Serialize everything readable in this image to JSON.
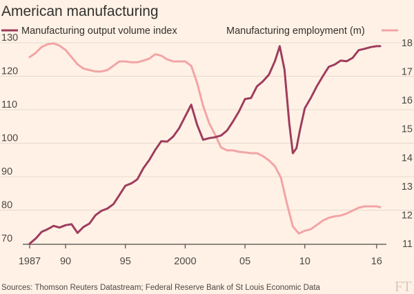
{
  "chart_data": {
    "type": "line",
    "title": "American manufacturing",
    "source": "Sources: Thomson Reuters Datastream; Federal Reserve Bank of St Louis Economic Data",
    "logo": "FT",
    "x_ticks": [
      "1987",
      "90",
      "95",
      "2000",
      "05",
      "10",
      "16"
    ],
    "x_tick_values": [
      1987,
      1990,
      1995,
      2000,
      2005,
      2010,
      2016
    ],
    "xlim": [
      1987,
      2016.3
    ],
    "left_axis": {
      "ticks": [
        "70",
        "80",
        "90",
        "100",
        "110",
        "120",
        "130"
      ],
      "ylim": [
        70,
        130
      ]
    },
    "right_axis": {
      "ticks": [
        "11",
        "12",
        "13",
        "14",
        "15",
        "16",
        "17",
        "18"
      ],
      "ylim": [
        11,
        18
      ]
    },
    "grid": true,
    "series": [
      {
        "name": "Manufacturing output volume index",
        "axis": "left",
        "color": "#9e3c5e",
        "x": [
          1987.0,
          1987.5,
          1988.0,
          1988.5,
          1989.0,
          1989.5,
          1990.0,
          1990.5,
          1991.0,
          1991.5,
          1992.0,
          1992.5,
          1993.0,
          1993.5,
          1994.0,
          1994.5,
          1995.0,
          1995.5,
          1996.0,
          1996.5,
          1997.0,
          1997.5,
          1998.0,
          1998.5,
          1999.0,
          1999.5,
          2000.0,
          2000.5,
          2001.0,
          2001.5,
          2002.0,
          2002.5,
          2003.0,
          2003.5,
          2004.0,
          2004.5,
          2005.0,
          2005.5,
          2006.0,
          2006.5,
          2007.0,
          2007.5,
          2007.9,
          2008.3,
          2008.7,
          2009.0,
          2009.3,
          2009.6,
          2010.0,
          2010.5,
          2011.0,
          2011.5,
          2012.0,
          2012.5,
          2013.0,
          2013.5,
          2014.0,
          2014.5,
          2015.0,
          2015.5,
          2016.0,
          2016.3
        ],
        "values": [
          70.0,
          71.5,
          73.5,
          74.3,
          75.3,
          74.8,
          75.5,
          75.8,
          73.2,
          75.0,
          76.0,
          78.5,
          79.8,
          80.5,
          81.8,
          84.5,
          87.3,
          88.0,
          89.2,
          92.5,
          95.0,
          98.0,
          100.6,
          100.5,
          102.0,
          104.5,
          108.0,
          111.5,
          105.5,
          101.0,
          101.5,
          101.8,
          102.3,
          103.8,
          106.5,
          109.5,
          113.2,
          113.5,
          117.0,
          118.5,
          120.5,
          124.5,
          129.0,
          122.0,
          106.0,
          97.0,
          98.5,
          104.0,
          110.5,
          113.5,
          117.0,
          120.0,
          122.8,
          123.5,
          124.7,
          124.5,
          125.5,
          127.8,
          128.2,
          128.7,
          129.0,
          129.0
        ]
      },
      {
        "name": "Manufacturing employment (m)",
        "axis": "right",
        "color": "#f2a4a6",
        "x": [
          1987.0,
          1987.5,
          1988.0,
          1988.5,
          1989.0,
          1989.5,
          1990.0,
          1990.5,
          1991.0,
          1991.5,
          1992.0,
          1992.5,
          1993.0,
          1993.5,
          1994.0,
          1994.5,
          1995.0,
          1995.5,
          1996.0,
          1996.5,
          1997.0,
          1997.5,
          1998.0,
          1998.5,
          1999.0,
          1999.5,
          2000.0,
          2000.5,
          2001.0,
          2001.5,
          2002.0,
          2002.5,
          2003.0,
          2003.5,
          2004.0,
          2004.5,
          2005.0,
          2005.5,
          2006.0,
          2006.5,
          2007.0,
          2007.5,
          2008.0,
          2008.5,
          2009.0,
          2009.5,
          2010.0,
          2010.5,
          2011.0,
          2011.5,
          2012.0,
          2012.5,
          2013.0,
          2013.5,
          2014.0,
          2014.5,
          2015.0,
          2015.5,
          2016.0,
          2016.3
        ],
        "values": [
          17.5,
          17.65,
          17.85,
          17.95,
          17.98,
          17.9,
          17.75,
          17.5,
          17.25,
          17.1,
          17.05,
          17.0,
          17.0,
          17.05,
          17.2,
          17.35,
          17.35,
          17.32,
          17.32,
          17.38,
          17.45,
          17.6,
          17.55,
          17.42,
          17.35,
          17.35,
          17.35,
          17.2,
          16.6,
          15.8,
          15.2,
          14.8,
          14.35,
          14.25,
          14.25,
          14.2,
          14.18,
          14.15,
          14.15,
          14.05,
          13.9,
          13.7,
          13.3,
          12.4,
          11.6,
          11.35,
          11.45,
          11.5,
          11.65,
          11.8,
          11.9,
          11.95,
          11.98,
          12.05,
          12.15,
          12.25,
          12.3,
          12.3,
          12.3,
          12.27
        ]
      }
    ]
  }
}
